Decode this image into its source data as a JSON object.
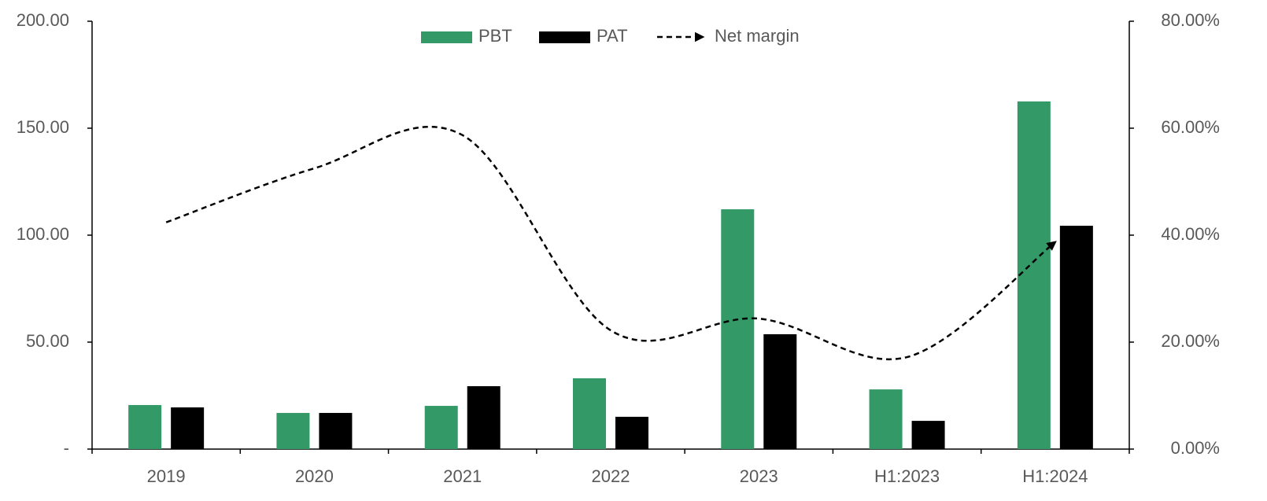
{
  "chart_data": {
    "type": "bar",
    "categories": [
      "2019",
      "2020",
      "2021",
      "2022",
      "2023",
      "H1:2023",
      "H1:2024"
    ],
    "series": [
      {
        "name": "PBT",
        "color": "#339966",
        "values": [
          20.6,
          16.9,
          20.2,
          33.1,
          112.1,
          27.9,
          162.5
        ]
      },
      {
        "name": "PAT",
        "color": "#000000",
        "values": [
          19.5,
          16.9,
          29.4,
          15.1,
          53.7,
          13.2,
          104.4
        ]
      },
      {
        "name": "Net margin",
        "type": "line",
        "axis": "y2",
        "color": "#000000",
        "dashed": true,
        "values": [
          42.4,
          52.5,
          58.7,
          22.2,
          24.4,
          17.2,
          38.7
        ]
      }
    ],
    "ylim": [
      0,
      200
    ],
    "yticks": [
      {
        "value": 0,
        "label": "-"
      },
      {
        "value": 50,
        "label": "50.00"
      },
      {
        "value": 100,
        "label": "100.00"
      },
      {
        "value": 150,
        "label": "150.00"
      },
      {
        "value": 200,
        "label": "200.00"
      }
    ],
    "y2lim": [
      0,
      80
    ],
    "y2ticks": [
      {
        "value": 0,
        "label": "0.00%"
      },
      {
        "value": 20,
        "label": "20.00%"
      },
      {
        "value": 40,
        "label": "40.00%"
      },
      {
        "value": 60,
        "label": "60.00%"
      },
      {
        "value": 80,
        "label": "80.00%"
      }
    ],
    "legend": "top",
    "grid": false
  }
}
